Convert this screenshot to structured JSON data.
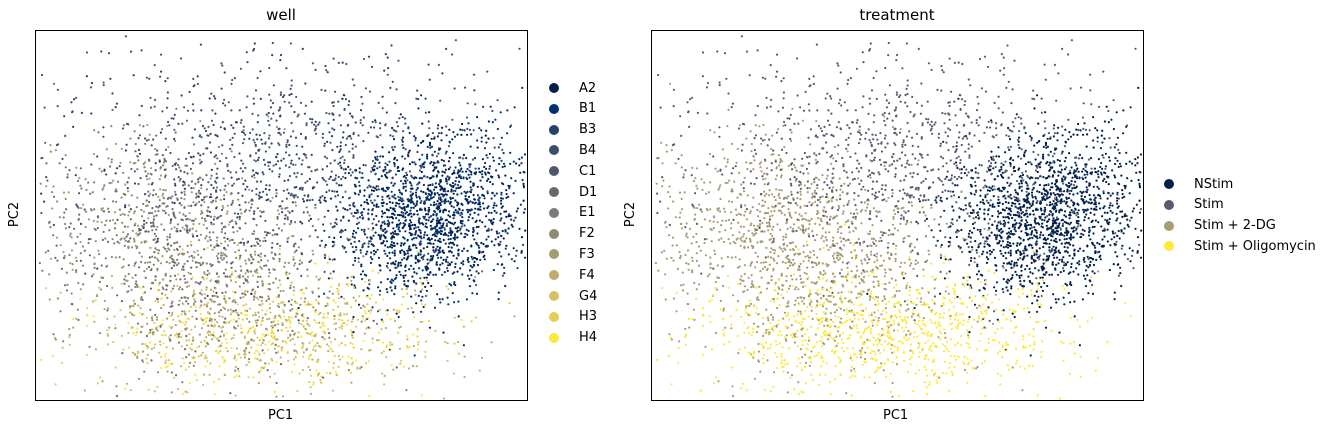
{
  "chart_data": [
    {
      "type": "scatter",
      "title": "well",
      "xlabel": "PC1",
      "ylabel": "PC2",
      "grid": false,
      "legend_placement": "right",
      "series": [
        {
          "name": "A2",
          "color": "#00204c"
        },
        {
          "name": "B1",
          "color": "#00306f"
        },
        {
          "name": "B3",
          "color": "#2a3f6d"
        },
        {
          "name": "B4",
          "color": "#3c4d6e"
        },
        {
          "name": "C1",
          "color": "#4f576c"
        },
        {
          "name": "D1",
          "color": "#666970"
        },
        {
          "name": "E1",
          "color": "#7c7b78"
        },
        {
          "name": "F2",
          "color": "#8f8a75"
        },
        {
          "name": "F3",
          "color": "#a59c74"
        },
        {
          "name": "F4",
          "color": "#bcae6d"
        },
        {
          "name": "G4",
          "color": "#d3c164"
        },
        {
          "name": "H3",
          "color": "#e5cf52"
        },
        {
          "name": "H4",
          "color": "#fee838"
        }
      ]
    },
    {
      "type": "scatter",
      "title": "treatment",
      "xlabel": "PC1",
      "ylabel": "PC2",
      "grid": false,
      "legend_placement": "right",
      "series": [
        {
          "name": "NStim",
          "color": "#00204c"
        },
        {
          "name": "Stim",
          "color": "#575c6d"
        },
        {
          "name": "Stim + 2-DG",
          "color": "#a69d75"
        },
        {
          "name": "Stim + Oligomycin",
          "color": "#fee838"
        }
      ]
    }
  ]
}
